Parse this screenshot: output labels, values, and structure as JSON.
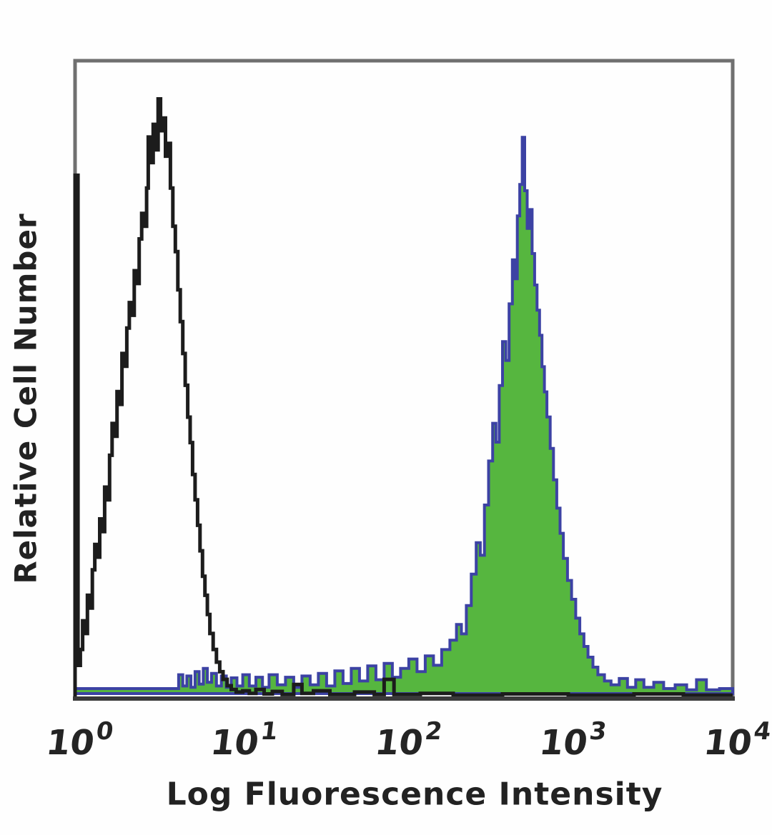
{
  "figure": {
    "kind": "flow-cytometry-histogram-figure"
  },
  "chart_data": {
    "type": "histogram",
    "title": "",
    "xlabel": "Log Fluorescence Intensity",
    "ylabel": "Relative Cell Number",
    "x_scale": "log10",
    "x_range_log10": [
      0,
      4
    ],
    "x_ticks": [
      {
        "base": "10",
        "exp": "0"
      },
      {
        "base": "10",
        "exp": "1"
      },
      {
        "base": "10",
        "exp": "2"
      },
      {
        "base": "10",
        "exp": "3"
      },
      {
        "base": "10",
        "exp": "4"
      }
    ],
    "y_axis": "relative (no ticks shown)",
    "y_range_rel": [
      0,
      1
    ],
    "grid": false,
    "legend": "none",
    "plot_border_color": "#707070",
    "axis_color": "#3a3a3a",
    "series": [
      {
        "name": "open black control histogram",
        "style": "open",
        "line_color": "#1c1c1c",
        "fill_color": "none",
        "peak_log10_x": 0.51,
        "peak_x_approx": 3.2,
        "peak_rel_height": 0.94,
        "points_log10x_relheight": [
          [
            0.0,
            0.82
          ],
          [
            0.018,
            0.05
          ],
          [
            0.032,
            0.075
          ],
          [
            0.046,
            0.12
          ],
          [
            0.06,
            0.1
          ],
          [
            0.075,
            0.16
          ],
          [
            0.09,
            0.14
          ],
          [
            0.105,
            0.2
          ],
          [
            0.12,
            0.24
          ],
          [
            0.135,
            0.22
          ],
          [
            0.15,
            0.28
          ],
          [
            0.165,
            0.26
          ],
          [
            0.18,
            0.33
          ],
          [
            0.195,
            0.31
          ],
          [
            0.21,
            0.38
          ],
          [
            0.225,
            0.43
          ],
          [
            0.24,
            0.41
          ],
          [
            0.255,
            0.48
          ],
          [
            0.27,
            0.46
          ],
          [
            0.285,
            0.54
          ],
          [
            0.3,
            0.52
          ],
          [
            0.315,
            0.58
          ],
          [
            0.33,
            0.62
          ],
          [
            0.345,
            0.6
          ],
          [
            0.36,
            0.67
          ],
          [
            0.375,
            0.65
          ],
          [
            0.39,
            0.72
          ],
          [
            0.405,
            0.76
          ],
          [
            0.42,
            0.74
          ],
          [
            0.435,
            0.8
          ],
          [
            0.445,
            0.88
          ],
          [
            0.46,
            0.84
          ],
          [
            0.475,
            0.9
          ],
          [
            0.49,
            0.86
          ],
          [
            0.505,
            0.94
          ],
          [
            0.52,
            0.89
          ],
          [
            0.535,
            0.91
          ],
          [
            0.55,
            0.85
          ],
          [
            0.565,
            0.87
          ],
          [
            0.58,
            0.8
          ],
          [
            0.595,
            0.74
          ],
          [
            0.61,
            0.7
          ],
          [
            0.625,
            0.64
          ],
          [
            0.64,
            0.59
          ],
          [
            0.655,
            0.54
          ],
          [
            0.67,
            0.49
          ],
          [
            0.685,
            0.44
          ],
          [
            0.7,
            0.4
          ],
          [
            0.715,
            0.35
          ],
          [
            0.73,
            0.31
          ],
          [
            0.745,
            0.27
          ],
          [
            0.76,
            0.23
          ],
          [
            0.775,
            0.19
          ],
          [
            0.79,
            0.16
          ],
          [
            0.805,
            0.13
          ],
          [
            0.82,
            0.1
          ],
          [
            0.84,
            0.075
          ],
          [
            0.86,
            0.055
          ],
          [
            0.88,
            0.04
          ],
          [
            0.9,
            0.028
          ],
          [
            0.925,
            0.018
          ],
          [
            0.95,
            0.012
          ],
          [
            0.98,
            0.008
          ],
          [
            1.02,
            0.01
          ],
          [
            1.06,
            0.006
          ],
          [
            1.1,
            0.012
          ],
          [
            1.15,
            0.005
          ],
          [
            1.2,
            0.009
          ],
          [
            1.26,
            0.004
          ],
          [
            1.33,
            0.02
          ],
          [
            1.38,
            0.006
          ],
          [
            1.45,
            0.01
          ],
          [
            1.55,
            0.004
          ],
          [
            1.7,
            0.008
          ],
          [
            1.82,
            0.004
          ],
          [
            1.88,
            0.028
          ],
          [
            1.94,
            0.004
          ],
          [
            2.1,
            0.006
          ],
          [
            2.3,
            0.003
          ],
          [
            2.6,
            0.005
          ],
          [
            3.0,
            0.003
          ],
          [
            3.4,
            0.005
          ],
          [
            3.7,
            0.003
          ],
          [
            4.0,
            0.003
          ]
        ]
      },
      {
        "name": "filled green stained histogram (blue outline)",
        "style": "filled",
        "line_color": "#3c42a4",
        "fill_color": "#56b63f",
        "peak_log10_x": 2.71,
        "peak_x_approx": 510,
        "peak_rel_height": 0.885,
        "points_log10x_relheight": [
          [
            0.0,
            0.008
          ],
          [
            0.6,
            0.008
          ],
          [
            0.63,
            0.03
          ],
          [
            0.655,
            0.012
          ],
          [
            0.68,
            0.028
          ],
          [
            0.705,
            0.01
          ],
          [
            0.73,
            0.035
          ],
          [
            0.755,
            0.015
          ],
          [
            0.78,
            0.04
          ],
          [
            0.805,
            0.018
          ],
          [
            0.83,
            0.032
          ],
          [
            0.86,
            0.012
          ],
          [
            0.89,
            0.028
          ],
          [
            0.92,
            0.01
          ],
          [
            0.95,
            0.025
          ],
          [
            0.985,
            0.012
          ],
          [
            1.02,
            0.03
          ],
          [
            1.06,
            0.012
          ],
          [
            1.1,
            0.026
          ],
          [
            1.14,
            0.01
          ],
          [
            1.18,
            0.03
          ],
          [
            1.23,
            0.014
          ],
          [
            1.28,
            0.026
          ],
          [
            1.33,
            0.01
          ],
          [
            1.38,
            0.028
          ],
          [
            1.43,
            0.014
          ],
          [
            1.48,
            0.032
          ],
          [
            1.53,
            0.012
          ],
          [
            1.58,
            0.036
          ],
          [
            1.63,
            0.016
          ],
          [
            1.68,
            0.04
          ],
          [
            1.73,
            0.02
          ],
          [
            1.78,
            0.044
          ],
          [
            1.83,
            0.022
          ],
          [
            1.88,
            0.048
          ],
          [
            1.93,
            0.026
          ],
          [
            1.98,
            0.04
          ],
          [
            2.03,
            0.055
          ],
          [
            2.08,
            0.035
          ],
          [
            2.13,
            0.06
          ],
          [
            2.18,
            0.045
          ],
          [
            2.23,
            0.07
          ],
          [
            2.28,
            0.085
          ],
          [
            2.32,
            0.11
          ],
          [
            2.35,
            0.095
          ],
          [
            2.38,
            0.14
          ],
          [
            2.41,
            0.19
          ],
          [
            2.44,
            0.24
          ],
          [
            2.465,
            0.22
          ],
          [
            2.49,
            0.3
          ],
          [
            2.515,
            0.37
          ],
          [
            2.54,
            0.43
          ],
          [
            2.56,
            0.4
          ],
          [
            2.58,
            0.49
          ],
          [
            2.6,
            0.56
          ],
          [
            2.62,
            0.53
          ],
          [
            2.64,
            0.62
          ],
          [
            2.66,
            0.69
          ],
          [
            2.675,
            0.66
          ],
          [
            2.69,
            0.76
          ],
          [
            2.705,
            0.81
          ],
          [
            2.72,
            0.885
          ],
          [
            2.735,
            0.8
          ],
          [
            2.75,
            0.74
          ],
          [
            2.765,
            0.77
          ],
          [
            2.78,
            0.7
          ],
          [
            2.795,
            0.65
          ],
          [
            2.81,
            0.61
          ],
          [
            2.825,
            0.57
          ],
          [
            2.84,
            0.52
          ],
          [
            2.855,
            0.48
          ],
          [
            2.87,
            0.44
          ],
          [
            2.89,
            0.39
          ],
          [
            2.91,
            0.34
          ],
          [
            2.93,
            0.295
          ],
          [
            2.95,
            0.255
          ],
          [
            2.97,
            0.215
          ],
          [
            2.995,
            0.18
          ],
          [
            3.02,
            0.15
          ],
          [
            3.045,
            0.12
          ],
          [
            3.07,
            0.095
          ],
          [
            3.095,
            0.075
          ],
          [
            3.12,
            0.058
          ],
          [
            3.15,
            0.042
          ],
          [
            3.18,
            0.03
          ],
          [
            3.22,
            0.02
          ],
          [
            3.26,
            0.014
          ],
          [
            3.31,
            0.024
          ],
          [
            3.36,
            0.01
          ],
          [
            3.41,
            0.022
          ],
          [
            3.46,
            0.01
          ],
          [
            3.52,
            0.018
          ],
          [
            3.58,
            0.008
          ],
          [
            3.65,
            0.014
          ],
          [
            3.72,
            0.006
          ],
          [
            3.78,
            0.022
          ],
          [
            3.84,
            0.006
          ],
          [
            3.92,
            0.008
          ],
          [
            4.0,
            0.004
          ]
        ]
      }
    ]
  }
}
